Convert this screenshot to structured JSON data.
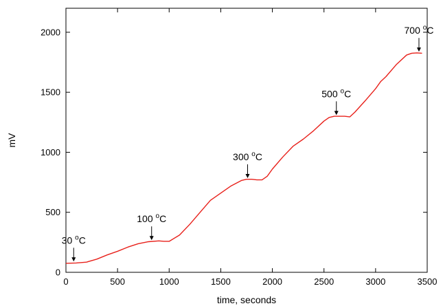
{
  "chart_data": {
    "type": "line",
    "title": "",
    "xlabel": "time, seconds",
    "ylabel": "mV",
    "xlim": [
      0,
      3500
    ],
    "ylim": [
      0,
      2200
    ],
    "xticks": [
      0,
      500,
      1000,
      1500,
      2000,
      2500,
      3000,
      3500
    ],
    "yticks": [
      0,
      500,
      1000,
      1500,
      2000
    ],
    "grid": false,
    "legend": "none",
    "series": [
      {
        "color": "#e8201a",
        "x": [
          0,
          100,
          200,
          300,
          400,
          500,
          600,
          700,
          800,
          900,
          950,
          1000,
          1100,
          1200,
          1300,
          1400,
          1500,
          1600,
          1700,
          1750,
          1800,
          1850,
          1900,
          1950,
          2000,
          2100,
          2200,
          2300,
          2400,
          2500,
          2550,
          2600,
          2650,
          2700,
          2750,
          2800,
          2900,
          3000,
          3050,
          3100,
          3200,
          3300,
          3350,
          3400,
          3450
        ],
        "y": [
          75,
          78,
          85,
          110,
          145,
          175,
          210,
          238,
          255,
          262,
          258,
          258,
          310,
          400,
          500,
          600,
          660,
          720,
          765,
          775,
          775,
          770,
          770,
          800,
          860,
          960,
          1050,
          1110,
          1180,
          1260,
          1290,
          1300,
          1300,
          1300,
          1295,
          1335,
          1430,
          1530,
          1590,
          1630,
          1730,
          1810,
          1825,
          1828,
          1825
        ]
      }
    ],
    "annotations": [
      {
        "label": "30 °C",
        "text": "30 ",
        "sup": "o",
        "unit": "C",
        "x": 75,
        "y": 90
      },
      {
        "label": "100 °C",
        "text": "100 ",
        "sup": "o",
        "unit": "C",
        "x": 830,
        "y": 268
      },
      {
        "label": "300 °C",
        "text": "300 ",
        "sup": "o",
        "unit": "C",
        "x": 1760,
        "y": 785
      },
      {
        "label": "500 °C",
        "text": "500 ",
        "sup": "o",
        "unit": "C",
        "x": 2620,
        "y": 1310
      },
      {
        "label": "700 °C",
        "text": "700 ",
        "sup": "o",
        "unit": "C",
        "x": 3420,
        "y": 1838
      }
    ]
  }
}
